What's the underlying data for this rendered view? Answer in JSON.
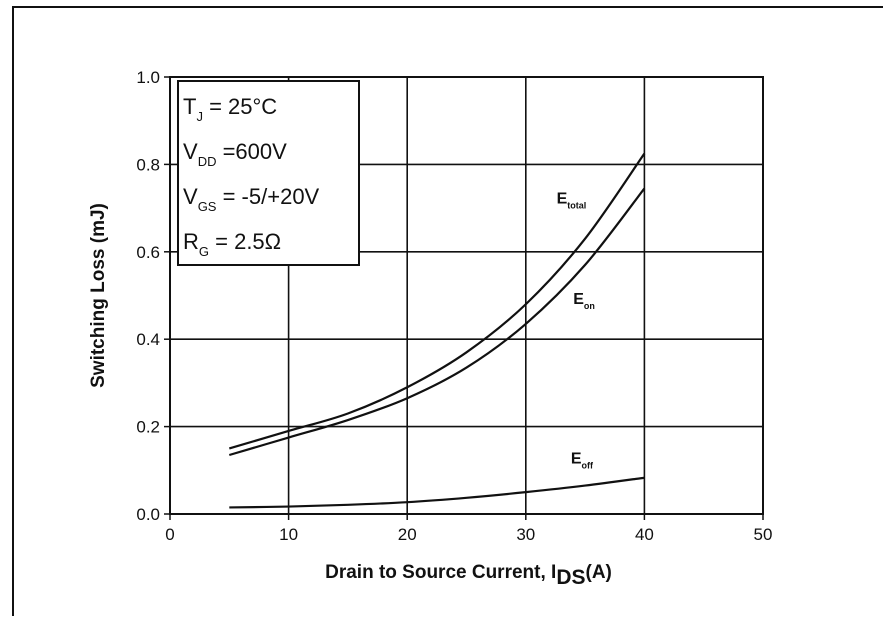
{
  "chart_data": {
    "type": "line",
    "title": "",
    "xlabel": "Drain to Source Current, I",
    "xlabel_sub": "DS",
    "xlabel_unit": "(A)",
    "ylabel": "Switching Loss (mJ)",
    "xlim": [
      0,
      50
    ],
    "ylim": [
      0,
      1.0
    ],
    "xticks": [
      0,
      10,
      20,
      30,
      40,
      50
    ],
    "yticks": [
      0.0,
      0.2,
      0.4,
      0.6,
      0.8,
      1.0
    ],
    "xtick_labels": [
      "0",
      "10",
      "20",
      "30",
      "40",
      "50"
    ],
    "ytick_labels": [
      "0.0",
      "0.2",
      "0.4",
      "0.6",
      "0.8",
      "1.0"
    ],
    "grid": true,
    "conditions": [
      {
        "main": "T",
        "sub": "J",
        "rest": " = 25°C"
      },
      {
        "main": "V",
        "sub": "DD",
        "rest": " =600V"
      },
      {
        "main": "V",
        "sub": "GS",
        "rest": " = -5/+20V"
      },
      {
        "main": "R",
        "sub": "G",
        "rest": " = 2.5Ω"
      }
    ],
    "series": [
      {
        "name": "E_total",
        "label_main": "E",
        "label_sub": "total",
        "label_pos": [
          32.6,
          0.71
        ],
        "points": [
          [
            5,
            0.15
          ],
          [
            10,
            0.19
          ],
          [
            15,
            0.23
          ],
          [
            20,
            0.29
          ],
          [
            25,
            0.37
          ],
          [
            30,
            0.48
          ],
          [
            35,
            0.63
          ],
          [
            40,
            0.825
          ]
        ]
      },
      {
        "name": "E_on",
        "label_main": "E",
        "label_sub": "on",
        "label_pos": [
          34.0,
          0.48
        ],
        "points": [
          [
            5,
            0.135
          ],
          [
            10,
            0.175
          ],
          [
            15,
            0.215
          ],
          [
            20,
            0.265
          ],
          [
            25,
            0.335
          ],
          [
            30,
            0.435
          ],
          [
            35,
            0.57
          ],
          [
            40,
            0.745
          ]
        ]
      },
      {
        "name": "E_off",
        "label_main": "E",
        "label_sub": "off",
        "label_pos": [
          33.8,
          0.115
        ],
        "points": [
          [
            5,
            0.015
          ],
          [
            10,
            0.017
          ],
          [
            15,
            0.021
          ],
          [
            20,
            0.027
          ],
          [
            25,
            0.037
          ],
          [
            30,
            0.05
          ],
          [
            35,
            0.065
          ],
          [
            40,
            0.083
          ]
        ]
      }
    ]
  }
}
